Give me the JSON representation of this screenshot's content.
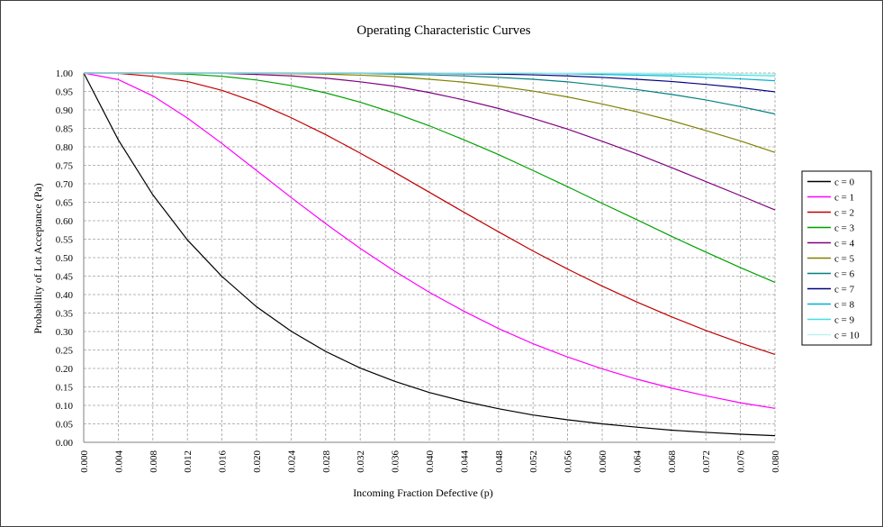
{
  "chart_data": {
    "type": "line",
    "title": "Operating Characteristic Curves",
    "xlabel": "Incoming Fraction Defective (p)",
    "ylabel": "Probability of Lot Acceptance (Pa)",
    "xlim": [
      0,
      0.08
    ],
    "ylim": [
      0,
      1
    ],
    "grid": true,
    "legend_position": "right",
    "x_ticks": [
      "0.000",
      "0.004",
      "0.008",
      "0.012",
      "0.016",
      "0.020",
      "0.024",
      "0.028",
      "0.032",
      "0.036",
      "0.040",
      "0.044",
      "0.048",
      "0.052",
      "0.056",
      "0.060",
      "0.064",
      "0.068",
      "0.072",
      "0.076",
      "0.080"
    ],
    "y_ticks": [
      "0.00",
      "0.05",
      "0.10",
      "0.15",
      "0.20",
      "0.25",
      "0.30",
      "0.35",
      "0.40",
      "0.45",
      "0.50",
      "0.55",
      "0.60",
      "0.65",
      "0.70",
      "0.75",
      "0.80",
      "0.85",
      "0.90",
      "0.95",
      "1.00"
    ],
    "x": [
      0.0,
      0.004,
      0.008,
      0.012,
      0.016,
      0.02,
      0.024,
      0.028,
      0.032,
      0.036,
      0.04,
      0.044,
      0.048,
      0.052,
      0.056,
      0.06,
      0.064,
      0.068,
      0.072,
      0.076,
      0.08
    ],
    "series": [
      {
        "name": "c = 0",
        "color": "#000000",
        "values": [
          1.0,
          0.819,
          0.67,
          0.548,
          0.449,
          0.367,
          0.301,
          0.246,
          0.201,
          0.165,
          0.135,
          0.111,
          0.091,
          0.074,
          0.061,
          0.05,
          0.041,
          0.033,
          0.027,
          0.022,
          0.018
        ]
      },
      {
        "name": "c = 1",
        "color": "#ff00ff",
        "values": [
          1.0,
          0.982,
          0.938,
          0.878,
          0.809,
          0.736,
          0.663,
          0.592,
          0.525,
          0.463,
          0.406,
          0.355,
          0.308,
          0.267,
          0.231,
          0.199,
          0.171,
          0.147,
          0.126,
          0.107,
          0.092
        ]
      },
      {
        "name": "c = 2",
        "color": "#c00000",
        "values": [
          1.0,
          0.999,
          0.991,
          0.977,
          0.953,
          0.92,
          0.879,
          0.833,
          0.783,
          0.731,
          0.677,
          0.623,
          0.57,
          0.518,
          0.469,
          0.423,
          0.38,
          0.34,
          0.303,
          0.269,
          0.238
        ]
      },
      {
        "name": "c = 3",
        "color": "#00a000",
        "values": [
          1.0,
          1.0,
          0.999,
          0.997,
          0.991,
          0.981,
          0.966,
          0.946,
          0.921,
          0.891,
          0.857,
          0.819,
          0.779,
          0.736,
          0.692,
          0.647,
          0.603,
          0.558,
          0.515,
          0.473,
          0.433
        ]
      },
      {
        "name": "c = 4",
        "color": "#800080",
        "values": [
          1.0,
          1.0,
          1.0,
          1.0,
          0.999,
          0.996,
          0.992,
          0.986,
          0.976,
          0.964,
          0.947,
          0.927,
          0.904,
          0.877,
          0.848,
          0.815,
          0.781,
          0.744,
          0.706,
          0.668,
          0.629
        ]
      },
      {
        "name": "c = 5",
        "color": "#808000",
        "values": [
          1.0,
          1.0,
          1.0,
          1.0,
          1.0,
          0.999,
          0.998,
          0.997,
          0.994,
          0.99,
          0.983,
          0.975,
          0.964,
          0.951,
          0.935,
          0.916,
          0.895,
          0.871,
          0.844,
          0.816,
          0.785
        ]
      },
      {
        "name": "c = 6",
        "color": "#008080",
        "values": [
          1.0,
          1.0,
          1.0,
          1.0,
          1.0,
          1.0,
          1.0,
          0.999,
          0.999,
          0.997,
          0.995,
          0.992,
          0.988,
          0.983,
          0.976,
          0.966,
          0.955,
          0.942,
          0.927,
          0.909,
          0.889
        ]
      },
      {
        "name": "c = 7",
        "color": "#000080",
        "values": [
          1.0,
          1.0,
          1.0,
          1.0,
          1.0,
          1.0,
          1.0,
          1.0,
          1.0,
          0.999,
          0.999,
          0.998,
          0.997,
          0.995,
          0.992,
          0.988,
          0.983,
          0.977,
          0.969,
          0.96,
          0.949
        ]
      },
      {
        "name": "c = 8",
        "color": "#00b0d0",
        "values": [
          1.0,
          1.0,
          1.0,
          1.0,
          1.0,
          1.0,
          1.0,
          1.0,
          1.0,
          1.0,
          1.0,
          0.999,
          0.999,
          0.999,
          0.998,
          0.996,
          0.994,
          0.992,
          0.988,
          0.984,
          0.979
        ]
      },
      {
        "name": "c = 9",
        "color": "#40e0e0",
        "values": [
          1.0,
          1.0,
          1.0,
          1.0,
          1.0,
          1.0,
          1.0,
          1.0,
          1.0,
          1.0,
          1.0,
          1.0,
          1.0,
          1.0,
          0.999,
          0.999,
          0.998,
          0.997,
          0.996,
          0.994,
          0.992
        ]
      },
      {
        "name": "c = 10",
        "color": "#c0f0f0",
        "values": [
          1.0,
          1.0,
          1.0,
          1.0,
          1.0,
          1.0,
          1.0,
          1.0,
          1.0,
          1.0,
          1.0,
          1.0,
          1.0,
          1.0,
          1.0,
          1.0,
          1.0,
          0.999,
          0.999,
          0.998,
          0.997
        ]
      }
    ]
  }
}
